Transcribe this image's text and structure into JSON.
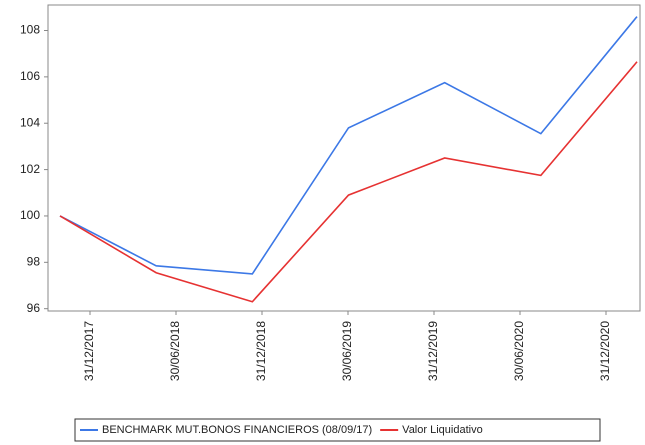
{
  "chart_data": {
    "type": "line",
    "categories": [
      "31/12/2017",
      "30/06/2018",
      "31/12/2018",
      "30/06/2019",
      "31/12/2019",
      "30/06/2020",
      "31/12/2020"
    ],
    "series": [
      {
        "name": "BENCHMARK MUT.BONOS FINANCIEROS (08/09/17)",
        "color": "#3c78e6",
        "values": [
          100,
          97.85,
          97.5,
          103.8,
          105.75,
          103.55,
          108.6
        ]
      },
      {
        "name": "Valor Liquidativo",
        "color": "#e63232",
        "values": [
          100,
          97.55,
          96.3,
          100.9,
          102.5,
          101.75,
          106.65
        ]
      }
    ],
    "ylim": [
      95.9,
      109.1
    ],
    "yticks": [
      96,
      98,
      100,
      102,
      104,
      106,
      108
    ],
    "grid": false
  }
}
